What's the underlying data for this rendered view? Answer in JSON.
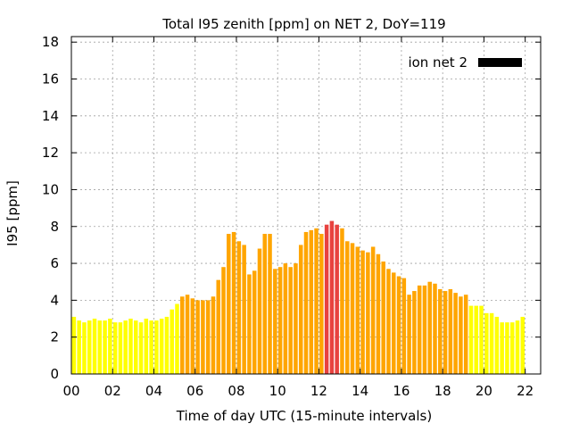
{
  "chart_data": {
    "type": "bar",
    "title": "Total I95 zenith [ppm] on NET 2, DoY=119",
    "xlabel": "Time of day UTC (15-minute intervals)",
    "ylabel": "I95 [ppm]",
    "xlim": [
      0,
      22.75
    ],
    "ylim": [
      0,
      18.3
    ],
    "x_ticks": [
      "00",
      "02",
      "04",
      "06",
      "08",
      "10",
      "12",
      "14",
      "16",
      "18",
      "20",
      "22"
    ],
    "y_ticks": [
      "0",
      "2",
      "4",
      "6",
      "8",
      "10",
      "12",
      "14",
      "16",
      "18"
    ],
    "grid": true,
    "legend": {
      "label": "ion net 2",
      "color": "#000000",
      "placement": "top-right"
    },
    "bar_interval_hours": 0.25,
    "colors": {
      "low": "#ffff00",
      "medium": "#ffa500",
      "high": "#e8423f"
    },
    "series": [
      {
        "values": [
          3.1,
          2.9,
          2.8,
          2.9,
          3.0,
          2.9,
          2.9,
          3.0,
          2.8,
          2.8,
          2.9,
          3.0,
          2.9,
          2.8,
          3.0,
          2.9,
          2.9,
          3.0,
          3.1,
          3.5,
          3.8,
          4.2,
          4.3,
          4.1,
          4.0,
          4.0,
          4.0,
          4.2,
          5.1,
          5.8,
          7.6,
          7.7,
          7.2,
          7.0,
          5.4,
          5.6,
          6.8,
          7.6,
          7.6,
          5.7,
          5.8,
          6.0,
          5.8,
          6.0,
          7.0,
          7.7,
          7.8,
          7.9,
          7.6,
          8.1,
          8.3,
          8.1,
          7.9,
          7.2,
          7.1,
          6.9,
          6.7,
          6.6,
          6.9,
          6.5,
          6.1,
          5.7,
          5.5,
          5.3,
          5.2,
          4.3,
          4.5,
          4.8,
          4.8,
          5.0,
          4.9,
          4.6,
          4.5,
          4.6,
          4.4,
          4.2,
          4.3,
          3.7,
          3.7,
          3.7,
          3.3,
          3.3,
          3.1,
          2.8,
          2.8,
          2.8,
          2.9,
          3.1
        ]
      }
    ]
  }
}
